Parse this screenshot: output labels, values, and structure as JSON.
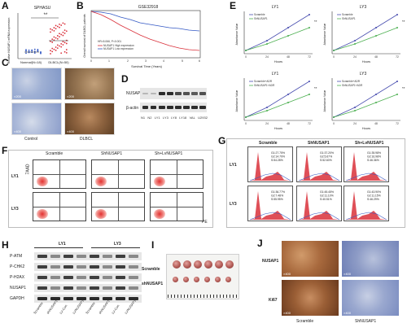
{
  "panels": {
    "A": {
      "label": "A",
      "title": "SPHASU",
      "ylabel": "Relative NUSAP1 mRNA expression",
      "significance": "**",
      "groups": [
        "Nonmal(N=18)",
        "DLBCL(N=50)"
      ]
    },
    "B": {
      "label": "B",
      "title": "GSE32918",
      "ylabel": "Overall survival of DLBCL patients",
      "xlabel": "Survival Time (Years)",
      "legend": [
        "NUSAP1 High expression",
        "NUSAP1 Low expression"
      ],
      "stats": "HR=5.066, P<0.001",
      "xticks": [
        "0",
        "1",
        "2",
        "3",
        "4",
        "5",
        "6"
      ]
    },
    "C": {
      "label": "C",
      "groups": [
        "Control",
        "DLBCL"
      ],
      "mags": [
        "×200",
        "×200",
        "×400",
        "×400"
      ]
    },
    "D": {
      "label": "D",
      "rows": [
        "NUSAP1",
        "β-actin"
      ],
      "lanes": [
        "N1",
        "N2",
        "LY1",
        "LY3",
        "LY8",
        "LY18",
        "VAL",
        "U2932"
      ]
    },
    "E": {
      "label": "E",
      "ylabel": "Absorbance Value",
      "xlabel": "Hours",
      "xticks": [
        "0",
        "24",
        "48",
        "72"
      ],
      "plots": [
        {
          "title": "LY1",
          "legend": [
            "Scramble",
            "ShNUSAP1"
          ],
          "sig": "**"
        },
        {
          "title": "LY3",
          "legend": [
            "Scramble",
            "ShNUSAP1"
          ],
          "sig": "**"
        },
        {
          "title": "LY1",
          "legend": [
            "Scramble+ADR",
            "ShNUSAP1+ADR"
          ],
          "sig": "**"
        },
        {
          "title": "LY3",
          "legend": [
            "Scramble+ADR",
            "ShNUSAP1+ADR"
          ],
          "sig": "**"
        }
      ]
    },
    "F": {
      "label": "F",
      "cols": [
        "Scramble",
        "ShNUSAP1",
        "Sh+LvNUSAP1"
      ],
      "rows": [
        "LY1",
        "LY3"
      ],
      "xaxis": "PE",
      "yaxis": "7AAD"
    },
    "G": {
      "label": "G",
      "cols": [
        "Scramble",
        "ShNUSAP1",
        "Sh+LvNUSAP1"
      ],
      "rows": [
        "LY1",
        "LY3"
      ],
      "readouts": [
        [
          "G1:27.75%",
          "G2:14.79%",
          "S:54.28%"
        ],
        [
          "G1:37.20%",
          "G2:5.67%",
          "S:52.60%"
        ],
        [
          "G1:35.98%",
          "G2:16.98%",
          "S:46.36%"
        ],
        [
          "G1:36.77%",
          "G2:7.48%",
          "S:55.95%"
        ],
        [
          "G1:45.45%",
          "G2:11.10%",
          "S:40.51%"
        ],
        [
          "G1:43.90%",
          "G2:11.15%",
          "S:46.29%"
        ]
      ]
    },
    "H": {
      "label": "H",
      "groups": [
        "LY1",
        "LY3"
      ],
      "rows": [
        "P-ATM",
        "P-CHK2",
        "P-H2AX",
        "NUSAP1",
        "GAPDH"
      ],
      "lanes": [
        "Scramble",
        "shNUSAP1",
        "LV-Con",
        "LVNUSAP1",
        "Scramble",
        "shNUSAP1",
        "LV-Con",
        "LVNUSAP1"
      ]
    },
    "I": {
      "label": "I",
      "rows": [
        "Scramble",
        "shNUSAP1"
      ]
    },
    "J": {
      "label": "J",
      "rows": [
        "NUSAP1",
        "Ki67"
      ],
      "cols": [
        "Scramble",
        "ShNUSAP1"
      ],
      "mags": [
        "×400",
        "×400",
        "×400",
        "×400"
      ]
    }
  },
  "colors": {
    "red": "#d9303a",
    "blue": "#3358c4",
    "green": "#4caf50",
    "dark": "#1f1f1f"
  }
}
